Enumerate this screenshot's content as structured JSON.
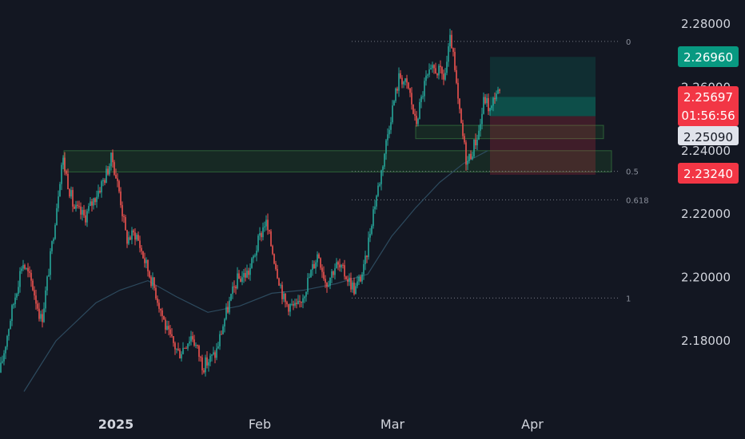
{
  "chart_data": {
    "type": "candlestick",
    "y_axis": {
      "ticks": [
        "2.28000",
        "2.26000",
        "2.24000",
        "2.22000",
        "2.20000",
        "2.18000"
      ],
      "range": [
        2.164,
        2.284
      ]
    },
    "x_axis": {
      "ticks": [
        "2025",
        "Feb",
        "Mar",
        "Apr"
      ]
    },
    "fib_levels": [
      {
        "label": "0",
        "price": 2.2745
      },
      {
        "label": "0.5",
        "price": 2.2335
      },
      {
        "label": "0.618",
        "price": 2.2245
      },
      {
        "label": "1",
        "price": 2.1935
      }
    ],
    "zones": [
      {
        "kind": "supply-demand",
        "from": 2.2333,
        "to": 2.24
      },
      {
        "kind": "supply-demand",
        "from": 2.2438,
        "to": 2.248
      }
    ],
    "position": {
      "target_price": 2.2696,
      "entry_price": 2.2509,
      "stop_price": 2.2324
    },
    "price_badges": [
      {
        "name": "target-price-badge",
        "text": "2.26960",
        "bg": "#089981",
        "fg": "#ffffff"
      },
      {
        "name": "last-price-badge",
        "text": "2.25697",
        "countdown": "01:56:56",
        "bg": "#f23645",
        "fg": "#ffffff"
      },
      {
        "name": "entry-price-badge",
        "text": "2.25090",
        "bg": "#e0e3eb",
        "fg": "#131722"
      },
      {
        "name": "stop-price-badge",
        "text": "2.23240",
        "bg": "#f23645",
        "fg": "#ffffff"
      }
    ],
    "colors": {
      "background": "#131722",
      "up": "#26a69a",
      "down": "#ef5350",
      "ma": "#2d4a5e",
      "zone": "#2e7d32"
    },
    "last_price": 2.25697
  }
}
